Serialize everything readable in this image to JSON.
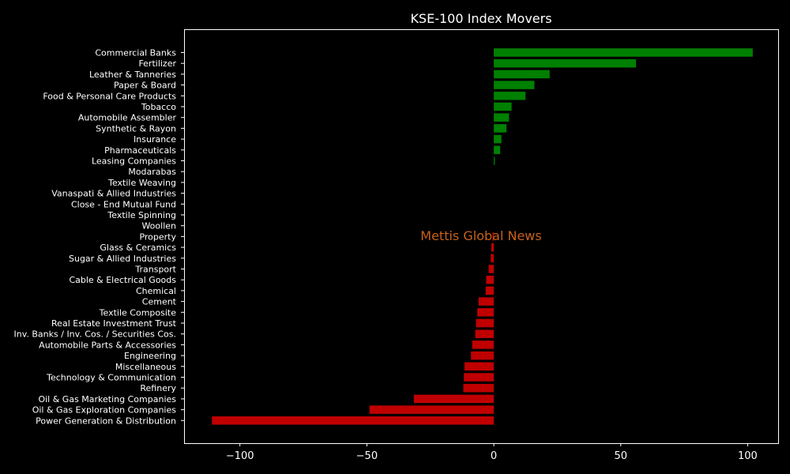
{
  "chart_data": {
    "type": "bar",
    "orientation": "horizontal",
    "title": "KSE-100 Index Movers",
    "xlabel": "",
    "ylabel": "",
    "xlim": [
      -122,
      112
    ],
    "xticks": [
      -100,
      -50,
      0,
      50,
      100
    ],
    "xtick_labels": [
      "−100",
      "−50",
      "0",
      "50",
      "100"
    ],
    "grid": false,
    "watermark": "Mettis Global News",
    "colors": {
      "positive": "#008000",
      "negative": "#c00000",
      "background": "#000000",
      "text": "#ffffff",
      "watermark": "#c8621a"
    },
    "categories": [
      "Commercial Banks",
      "Fertilizer",
      "Leather & Tanneries",
      "Paper & Board",
      "Food & Personal Care Products",
      "Tobacco",
      "Automobile Assembler",
      "Synthetic & Rayon",
      "Insurance",
      "Pharmaceuticals",
      "Leasing Companies",
      "Modarabas",
      "Textile Weaving",
      "Vanaspati & Allied Industries",
      "Close - End Mutual Fund",
      "Textile Spinning",
      "Woollen",
      "Property",
      "Glass & Ceramics",
      "Sugar & Allied Industries",
      "Transport",
      "Cable & Electrical Goods",
      "Chemical",
      "Cement",
      "Textile Composite",
      "Real Estate Investment Trust",
      "Inv. Banks / Inv. Cos. / Securities Cos.",
      "Automobile Parts & Accessories",
      "Engineering",
      "Miscellaneous",
      "Technology & Communication",
      "Refinery",
      "Oil & Gas Marketing Companies",
      "Oil & Gas Exploration Companies",
      "Power Generation & Distribution"
    ],
    "values": [
      102,
      56,
      22,
      16,
      12.5,
      7,
      6,
      5,
      3,
      2.5,
      0.4,
      0,
      0,
      0,
      0,
      0,
      0,
      -0.5,
      -1,
      -1.2,
      -2,
      -3,
      -3.2,
      -6,
      -6.5,
      -7,
      -7.3,
      -8.5,
      -9,
      -11.5,
      -11.8,
      -12,
      -31.5,
      -49,
      -111
    ]
  }
}
